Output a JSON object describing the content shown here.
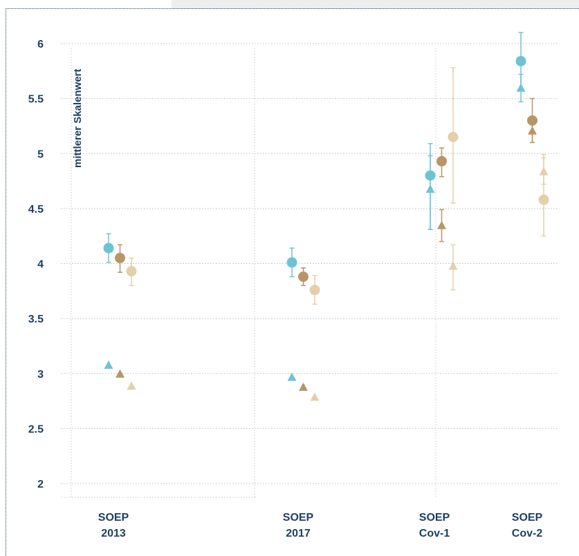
{
  "chart_data": {
    "type": "scatter",
    "ylabel": "mittlerer Skalenwert",
    "ylim": [
      2,
      6
    ],
    "yticks": [
      2,
      2.5,
      3,
      3.5,
      4,
      4.5,
      5,
      5.5,
      6
    ],
    "categories": [
      {
        "lines": [
          "SOEP",
          "2013"
        ]
      },
      {
        "lines": [
          "SOEP",
          "2017"
        ]
      },
      {
        "lines": [
          "SOEP",
          "Cov-1"
        ]
      },
      {
        "lines": [
          "SOEP",
          "Cov-2"
        ]
      }
    ],
    "colors": {
      "blue": "#6cc3d5",
      "brown": "#b99466",
      "beige": "#e4cfab"
    },
    "series": [
      {
        "marker": "circle",
        "color": "blue",
        "values": [
          4.14,
          4.01,
          4.8,
          5.84
        ],
        "err_low": [
          4.01,
          3.88,
          4.31,
          5.57
        ],
        "err_high": [
          4.27,
          4.14,
          5.09,
          6.1
        ]
      },
      {
        "marker": "circle",
        "color": "brown",
        "values": [
          4.05,
          3.88,
          4.93,
          5.3
        ],
        "err_low": [
          3.92,
          3.8,
          4.79,
          5.1
        ],
        "err_high": [
          4.17,
          3.96,
          5.05,
          5.5
        ]
      },
      {
        "marker": "circle",
        "color": "beige",
        "values": [
          3.93,
          3.76,
          5.15,
          4.58
        ],
        "err_low": [
          3.8,
          3.63,
          4.55,
          4.25
        ],
        "err_high": [
          4.05,
          3.89,
          5.78,
          4.99
        ]
      },
      {
        "marker": "triangle",
        "color": "blue",
        "values": [
          3.08,
          2.97,
          4.68,
          5.6
        ],
        "err_low": [
          null,
          null,
          4.31,
          5.47
        ],
        "err_high": [
          null,
          null,
          4.98,
          5.72
        ]
      },
      {
        "marker": "triangle",
        "color": "brown",
        "values": [
          3.0,
          2.88,
          4.35,
          5.21
        ],
        "err_low": [
          null,
          null,
          4.2,
          5.1
        ],
        "err_high": [
          null,
          null,
          4.49,
          5.33
        ]
      },
      {
        "marker": "triangle",
        "color": "beige",
        "values": [
          2.89,
          2.79,
          3.98,
          4.84
        ],
        "err_low": [
          null,
          null,
          3.76,
          4.72
        ],
        "err_high": [
          null,
          null,
          4.17,
          4.96
        ]
      }
    ]
  }
}
